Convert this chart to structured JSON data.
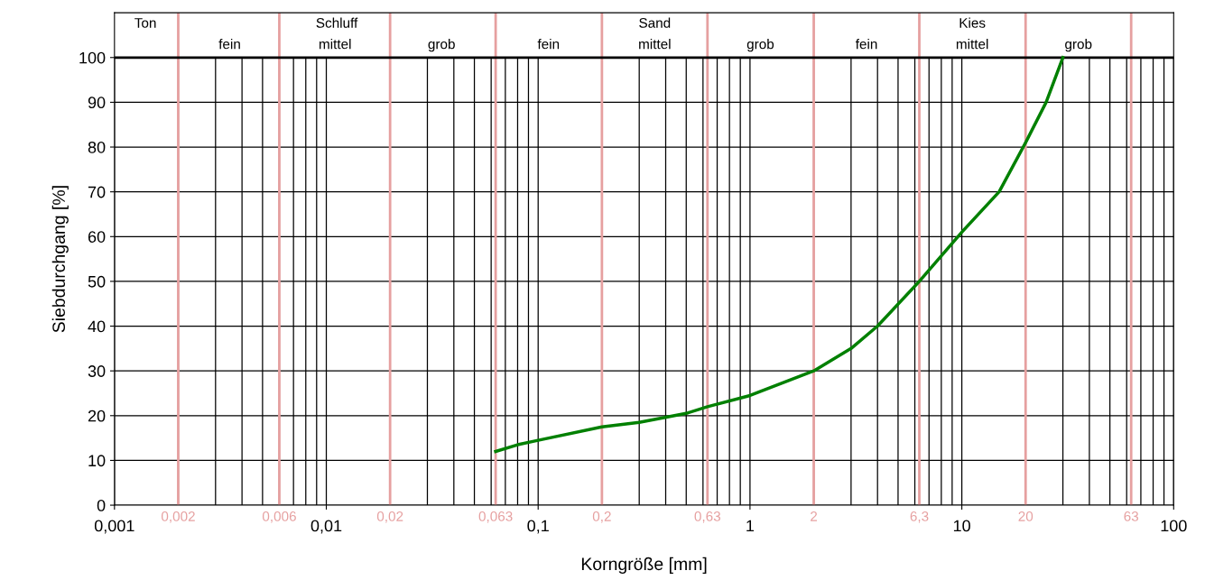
{
  "chart_data": {
    "type": "line",
    "xlabel": "Korngröße [mm]",
    "ylabel": "Siebdurchgang [%]",
    "log": "x",
    "xlim": [
      0.001,
      100
    ],
    "xticks": [
      {
        "value": 0.001,
        "label": "0,001"
      },
      {
        "value": 0.01,
        "label": "0,01"
      },
      {
        "value": 0.1,
        "label": "0,1"
      },
      1,
      10,
      100
    ],
    "ylim": [
      0,
      110
    ],
    "yticks": [
      0,
      10,
      20,
      30,
      40,
      50,
      60,
      70,
      80,
      90,
      100
    ],
    "grid": true,
    "marker": "none",
    "line_style": "solid",
    "series": [
      {
        "color": "#008000",
        "x": [
          0.063,
          0.08,
          0.1,
          0.2,
          0.3,
          0.5,
          0.63,
          1,
          2,
          3,
          4,
          6.3,
          10,
          15,
          20,
          25,
          30
        ],
        "values": [
          12,
          13.5,
          14.5,
          17.5,
          18.5,
          20.5,
          22,
          24.5,
          30,
          35,
          40,
          50,
          61,
          70,
          81,
          90,
          100
        ]
      }
    ],
    "ref_lines": [
      {
        "axis": "x",
        "value": 0.002,
        "label": "0,002",
        "color": "#e6a0a0"
      },
      {
        "axis": "x",
        "value": 0.006,
        "label": "0,006",
        "color": "#e6a0a0"
      },
      {
        "axis": "x",
        "value": 0.02,
        "label": "0,02",
        "color": "#e6a0a0"
      },
      {
        "axis": "x",
        "value": 0.063,
        "label": "0,063",
        "color": "#e6a0a0"
      },
      {
        "axis": "x",
        "value": 0.2,
        "label": "0,2",
        "color": "#e6a0a0"
      },
      {
        "axis": "x",
        "value": 0.63,
        "label": "0,63",
        "color": "#e6a0a0"
      },
      {
        "axis": "x",
        "value": 2,
        "label": "2",
        "color": "#e6a0a0"
      },
      {
        "axis": "x",
        "value": 6.3,
        "label": "6,3",
        "color": "#e6a0a0"
      },
      {
        "axis": "x",
        "value": 20,
        "label": "20",
        "color": "#e6a0a0"
      },
      {
        "axis": "x",
        "value": 63,
        "label": "63",
        "color": "#e6a0a0"
      },
      {
        "axis": "y",
        "value": 100,
        "color": "#000000"
      }
    ],
    "annotations": [
      "Ton",
      "Schluff",
      "fein",
      "mittel",
      "grob",
      "Sand",
      "fein",
      "mittel",
      "grob",
      "Kies",
      "fein",
      "mittel",
      "grob"
    ]
  }
}
